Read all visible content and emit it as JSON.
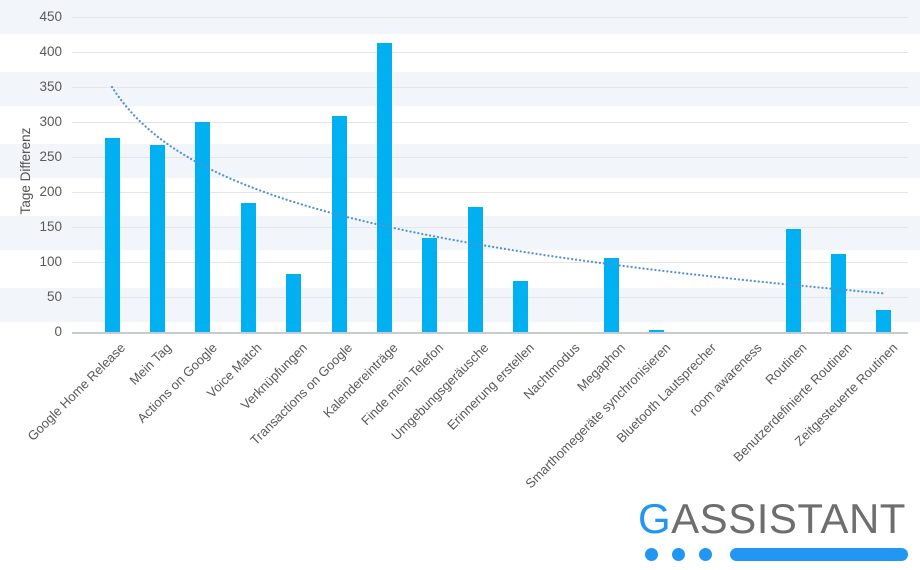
{
  "chart_data": {
    "type": "bar",
    "title": "",
    "xlabel": "",
    "ylabel": "Tage Differenz",
    "ylim": [
      0,
      450
    ],
    "y_ticks": [
      0,
      50,
      100,
      150,
      200,
      250,
      300,
      350,
      400,
      450
    ],
    "grid": "horizontal",
    "legend": "none",
    "bar_color": "#00b0f0",
    "categories": [
      "Google Home Release",
      "Mein Tag",
      "Actions on Google",
      "Voice Match",
      "Verknüpfungen",
      "Transactions on Google",
      "Kalendereinträge",
      "Finde mein Telefon",
      "Umgebungsgeräusche",
      "Erinnerung erstellen",
      "Nachtmodus",
      "Megaphon",
      "Smarthomegeräte synchronisieren",
      "Bluetooth Lautsprecher",
      "room awareness",
      "Routinen",
      "Benutzerdefinierte Routinen",
      "Zeitgesteuerte Routinen"
    ],
    "values": [
      277,
      267,
      300,
      185,
      83,
      308,
      413,
      135,
      178,
      73,
      0,
      106,
      3,
      0,
      0,
      147,
      111,
      32
    ],
    "trendline": {
      "type": "logarithmic",
      "formula": "y = 350 - 102*ln(x)",
      "a": 350,
      "b": -102,
      "color": "#4f93d8",
      "style": "dotted",
      "values": [
        350,
        279,
        238,
        209,
        186,
        167,
        152,
        138,
        126,
        115,
        105,
        97,
        88,
        81,
        74,
        67,
        61,
        55
      ]
    }
  },
  "colors": {
    "stripe": "#f2f5fa",
    "gridline": "#e4e6e9",
    "axis_line": "#c7cbd0",
    "tick_text": "#595959"
  },
  "logo": {
    "text_g": "G",
    "text_rest": "ASSISTANT",
    "blue": "#2196f3",
    "gray": "#6e6e6e"
  }
}
